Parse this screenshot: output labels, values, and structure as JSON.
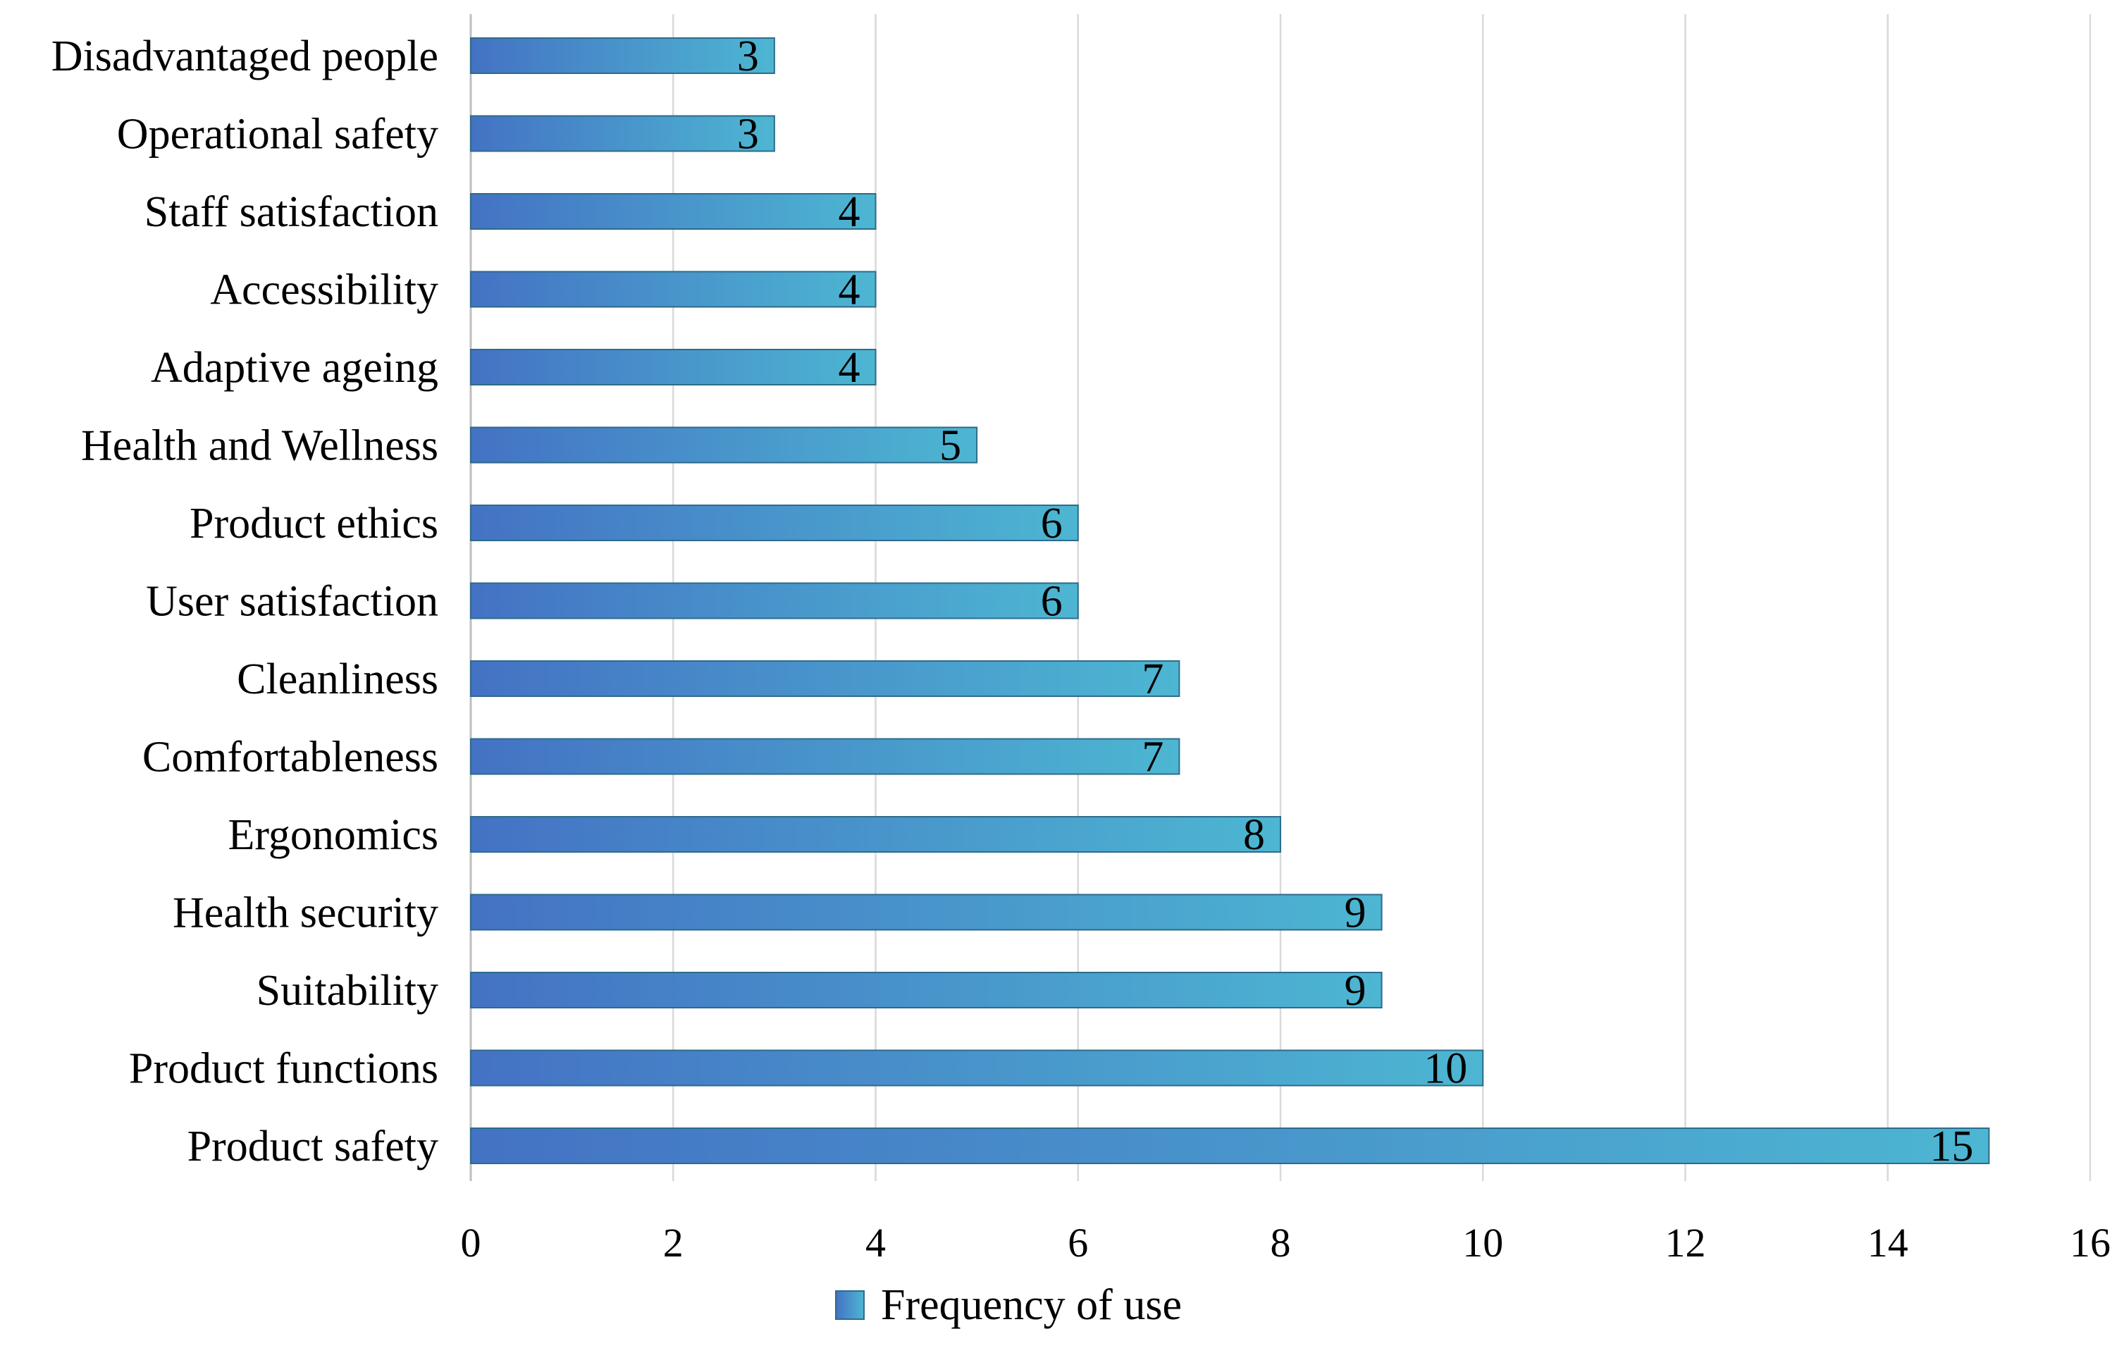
{
  "chart_data": {
    "type": "bar",
    "orientation": "horizontal",
    "categories": [
      "Disadvantaged people",
      "Operational safety",
      "Staff satisfaction",
      "Accessibility",
      "Adaptive ageing",
      "Health and Wellness",
      "Product ethics",
      "User satisfaction",
      "Cleanliness",
      "Comfortableness",
      "Ergonomics",
      "Health security",
      "Suitability",
      "Product functions",
      "Product safety"
    ],
    "series": [
      {
        "name": "Frequency of use",
        "values": [
          3,
          3,
          4,
          4,
          4,
          5,
          6,
          6,
          7,
          7,
          8,
          9,
          9,
          10,
          15
        ]
      }
    ],
    "title": "",
    "xlabel": "",
    "ylabel": "",
    "xlim": [
      0,
      16
    ],
    "xticks": [
      0,
      2,
      4,
      6,
      8,
      10,
      12,
      14,
      16
    ],
    "grid": "vertical",
    "legend_position": "bottom-center",
    "data_labels": true,
    "colors": {
      "bar_start": "#4472C4",
      "bar_end": "#4DB6D2",
      "bar_border": "#2E6B8A",
      "grid": "#D9D9D9",
      "axis": "#BFBFBF",
      "text": "#000000"
    }
  }
}
